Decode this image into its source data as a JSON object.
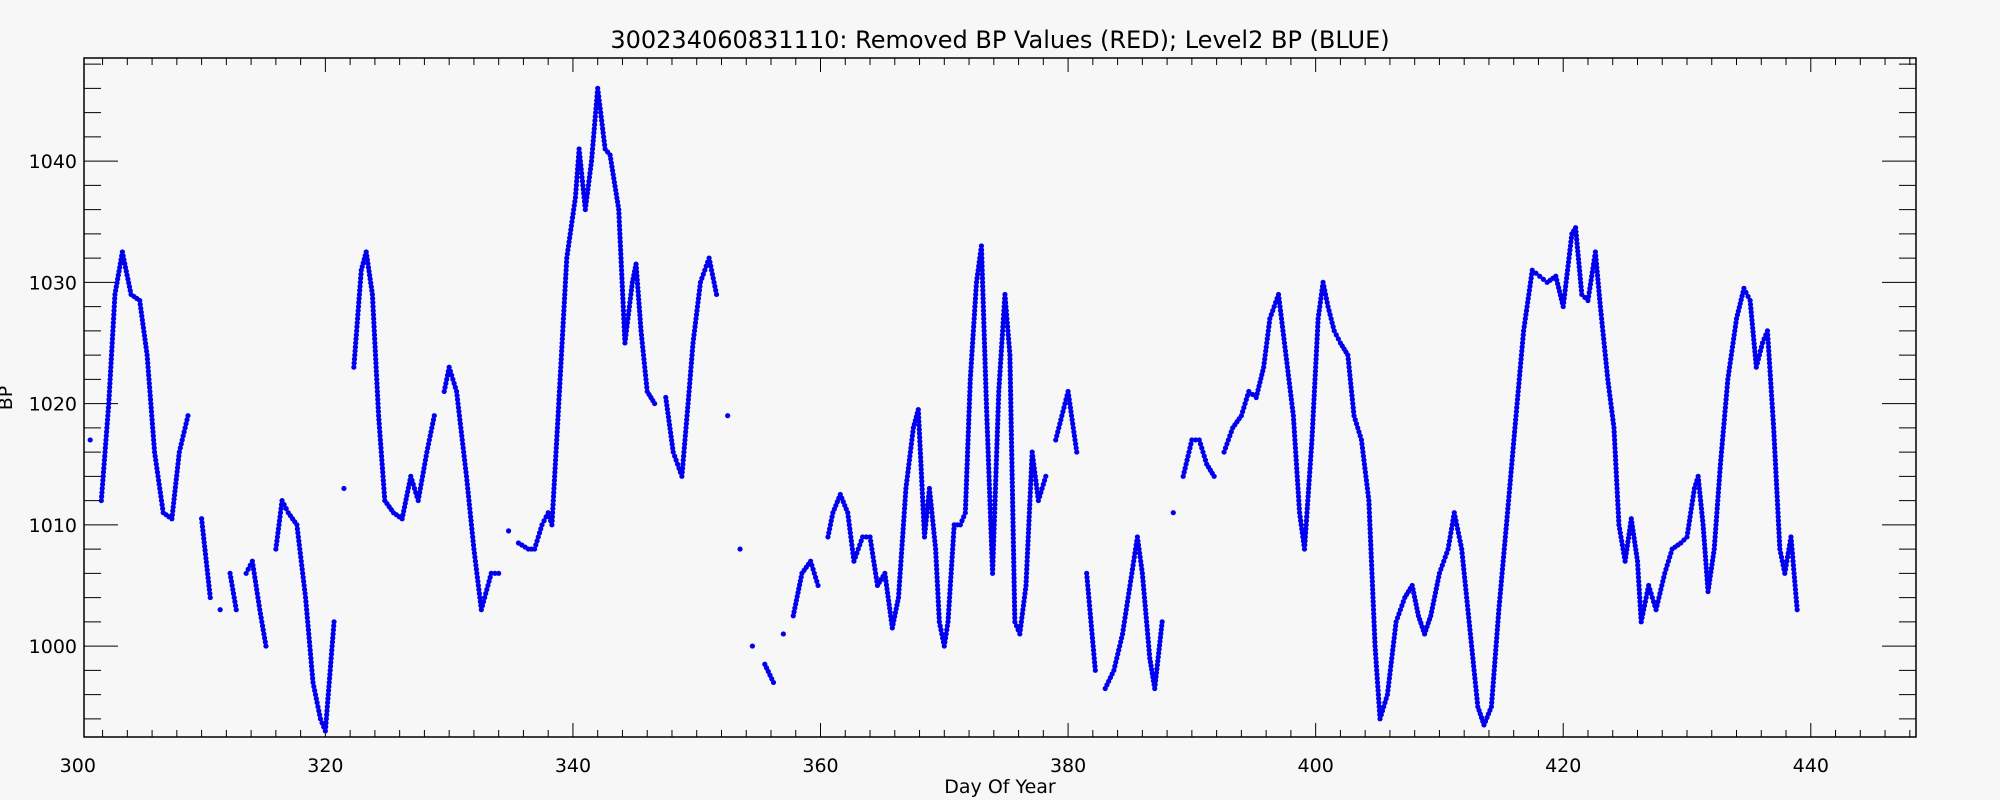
{
  "chart_data": {
    "type": "scatter",
    "title": "300234060831110: Removed BP Values (RED); Level2 BP (BLUE)",
    "xlabel": "Day Of Year",
    "ylabel": "BP",
    "xlim": [
      300.5,
      448.5
    ],
    "ylim": [
      992.5,
      1048.5
    ],
    "x_ticks": [
      300,
      320,
      340,
      360,
      380,
      400,
      420,
      440
    ],
    "y_ticks": [
      1000,
      1010,
      1020,
      1030,
      1040
    ],
    "grid": false,
    "legend": "none",
    "series": [
      {
        "color": "#0000ee",
        "anchors": [
          [
            301.0,
            1017
          ],
          [
            301.9,
            1012
          ],
          [
            302.5,
            1020
          ],
          [
            303.0,
            1029
          ],
          [
            303.6,
            1032.5
          ],
          [
            304.3,
            1029
          ],
          [
            305.0,
            1028.5
          ],
          [
            305.6,
            1024
          ],
          [
            306.2,
            1016
          ],
          [
            306.9,
            1011
          ],
          [
            307.6,
            1010.5
          ],
          [
            308.2,
            1016
          ],
          [
            308.9,
            1019
          ],
          [
            310.0,
            1010.5
          ],
          [
            310.7,
            1004
          ],
          [
            311.5,
            1003
          ],
          [
            312.3,
            1006
          ],
          [
            312.8,
            1003
          ],
          [
            313.6,
            1006
          ],
          [
            314.1,
            1007
          ],
          [
            314.7,
            1003
          ],
          [
            315.2,
            1000
          ],
          [
            316.0,
            1008
          ],
          [
            316.5,
            1012
          ],
          [
            317.0,
            1011
          ],
          [
            317.7,
            1010
          ],
          [
            318.4,
            1004
          ],
          [
            319.0,
            997
          ],
          [
            319.6,
            994
          ],
          [
            320.0,
            993
          ],
          [
            320.7,
            1002
          ],
          [
            321.5,
            1013
          ],
          [
            322.3,
            1023
          ],
          [
            322.9,
            1031
          ],
          [
            323.3,
            1032.5
          ],
          [
            323.8,
            1029
          ],
          [
            324.3,
            1019
          ],
          [
            324.8,
            1012
          ],
          [
            325.5,
            1011
          ],
          [
            326.2,
            1010.5
          ],
          [
            326.9,
            1014
          ],
          [
            327.5,
            1012
          ],
          [
            328.2,
            1016
          ],
          [
            328.8,
            1019
          ],
          [
            329.6,
            1021
          ],
          [
            330.0,
            1023
          ],
          [
            330.6,
            1021
          ],
          [
            331.4,
            1014
          ],
          [
            332.0,
            1008
          ],
          [
            332.6,
            1003
          ],
          [
            333.4,
            1006
          ],
          [
            334.0,
            1006
          ],
          [
            334.8,
            1009.5
          ],
          [
            335.6,
            1008.5
          ],
          [
            336.4,
            1008
          ],
          [
            336.9,
            1008
          ],
          [
            337.5,
            1010
          ],
          [
            338.0,
            1011
          ],
          [
            338.3,
            1010
          ],
          [
            338.8,
            1019
          ],
          [
            339.5,
            1032
          ],
          [
            340.2,
            1037
          ],
          [
            340.5,
            1041
          ],
          [
            341.0,
            1036
          ],
          [
            341.5,
            1040
          ],
          [
            342.0,
            1046
          ],
          [
            342.6,
            1041
          ],
          [
            343.0,
            1040.5
          ],
          [
            343.7,
            1036
          ],
          [
            344.2,
            1025
          ],
          [
            344.8,
            1030
          ],
          [
            345.1,
            1031.5
          ],
          [
            345.5,
            1026
          ],
          [
            346.0,
            1021
          ],
          [
            346.6,
            1020
          ],
          [
            347.5,
            1020.5
          ],
          [
            348.1,
            1016
          ],
          [
            348.8,
            1014
          ],
          [
            349.3,
            1020
          ],
          [
            349.7,
            1025
          ],
          [
            350.3,
            1030
          ],
          [
            351.0,
            1032
          ],
          [
            351.6,
            1029
          ],
          [
            352.5,
            1019
          ],
          [
            353.5,
            1008
          ],
          [
            354.5,
            1000
          ],
          [
            355.5,
            998.5
          ],
          [
            356.2,
            997
          ],
          [
            357.0,
            1001
          ],
          [
            357.8,
            1002.5
          ],
          [
            358.5,
            1006
          ],
          [
            359.2,
            1007
          ],
          [
            359.8,
            1005
          ],
          [
            360.6,
            1009
          ],
          [
            361.0,
            1011
          ],
          [
            361.6,
            1012.5
          ],
          [
            362.2,
            1011
          ],
          [
            362.7,
            1007
          ],
          [
            363.4,
            1009
          ],
          [
            364.0,
            1009
          ],
          [
            364.6,
            1005
          ],
          [
            365.2,
            1006
          ],
          [
            365.8,
            1001.5
          ],
          [
            366.3,
            1004
          ],
          [
            366.9,
            1013
          ],
          [
            367.5,
            1018
          ],
          [
            367.9,
            1019.5
          ],
          [
            368.4,
            1009
          ],
          [
            368.8,
            1013
          ],
          [
            369.3,
            1008
          ],
          [
            369.6,
            1002
          ],
          [
            370.0,
            1000
          ],
          [
            370.3,
            1002
          ],
          [
            370.8,
            1010
          ],
          [
            371.3,
            1010
          ],
          [
            371.7,
            1011
          ],
          [
            372.1,
            1022
          ],
          [
            372.6,
            1030
          ],
          [
            373.0,
            1033
          ],
          [
            373.4,
            1020
          ],
          [
            373.9,
            1006
          ],
          [
            374.4,
            1021
          ],
          [
            374.9,
            1029
          ],
          [
            375.3,
            1024
          ],
          [
            375.7,
            1002
          ],
          [
            376.1,
            1001
          ],
          [
            376.6,
            1005
          ],
          [
            377.1,
            1016
          ],
          [
            377.6,
            1012
          ],
          [
            378.2,
            1014
          ],
          [
            379.0,
            1017
          ],
          [
            379.5,
            1019
          ],
          [
            380.0,
            1021
          ],
          [
            380.7,
            1016
          ],
          [
            381.5,
            1006
          ],
          [
            382.2,
            998
          ],
          [
            383.0,
            996.5
          ],
          [
            383.7,
            998
          ],
          [
            384.4,
            1001
          ],
          [
            385.0,
            1005
          ],
          [
            385.6,
            1009
          ],
          [
            386.0,
            1006
          ],
          [
            386.6,
            999
          ],
          [
            387.0,
            996.5
          ],
          [
            387.6,
            1002
          ],
          [
            388.5,
            1011
          ],
          [
            389.3,
            1014
          ],
          [
            390.0,
            1017
          ],
          [
            390.6,
            1017
          ],
          [
            391.2,
            1015
          ],
          [
            391.8,
            1014
          ],
          [
            392.6,
            1016
          ],
          [
            393.3,
            1018
          ],
          [
            394.0,
            1019
          ],
          [
            394.6,
            1021
          ],
          [
            395.2,
            1020.5
          ],
          [
            395.8,
            1023
          ],
          [
            396.3,
            1027
          ],
          [
            397.0,
            1029
          ],
          [
            397.6,
            1024
          ],
          [
            398.2,
            1019
          ],
          [
            398.7,
            1011
          ],
          [
            399.1,
            1008
          ],
          [
            399.7,
            1017
          ],
          [
            400.2,
            1027
          ],
          [
            400.6,
            1030
          ],
          [
            401.0,
            1028
          ],
          [
            401.5,
            1026
          ],
          [
            402.0,
            1025
          ],
          [
            402.6,
            1024
          ],
          [
            403.1,
            1019
          ],
          [
            403.7,
            1017
          ],
          [
            404.3,
            1012
          ],
          [
            404.8,
            1000
          ],
          [
            405.2,
            994
          ],
          [
            405.8,
            996
          ],
          [
            406.5,
            1002
          ],
          [
            407.2,
            1004
          ],
          [
            407.8,
            1005
          ],
          [
            408.3,
            1002.5
          ],
          [
            408.8,
            1001
          ],
          [
            409.3,
            1002.5
          ],
          [
            410.0,
            1006
          ],
          [
            410.7,
            1008
          ],
          [
            411.2,
            1011
          ],
          [
            411.8,
            1008
          ],
          [
            412.5,
            1001
          ],
          [
            413.1,
            995
          ],
          [
            413.6,
            993.5
          ],
          [
            414.2,
            995
          ],
          [
            414.8,
            1003
          ],
          [
            415.5,
            1011
          ],
          [
            416.1,
            1018
          ],
          [
            416.8,
            1026
          ],
          [
            417.5,
            1031
          ],
          [
            418.1,
            1030.5
          ],
          [
            418.7,
            1030
          ],
          [
            419.4,
            1030.5
          ],
          [
            420.0,
            1028
          ],
          [
            420.7,
            1034
          ],
          [
            421.0,
            1034.5
          ],
          [
            421.5,
            1029
          ],
          [
            422.0,
            1028.5
          ],
          [
            422.6,
            1032.5
          ],
          [
            423.0,
            1028
          ],
          [
            423.6,
            1022
          ],
          [
            424.1,
            1018
          ],
          [
            424.5,
            1010
          ],
          [
            425.0,
            1007
          ],
          [
            425.5,
            1010.5
          ],
          [
            426.0,
            1007
          ],
          [
            426.3,
            1002
          ],
          [
            426.9,
            1005
          ],
          [
            427.5,
            1003
          ],
          [
            428.2,
            1006
          ],
          [
            428.8,
            1008
          ],
          [
            429.5,
            1008.5
          ],
          [
            430.0,
            1009
          ],
          [
            430.6,
            1013
          ],
          [
            430.9,
            1014
          ],
          [
            431.3,
            1010
          ],
          [
            431.7,
            1004.5
          ],
          [
            432.2,
            1008
          ],
          [
            432.7,
            1015
          ],
          [
            433.3,
            1022
          ],
          [
            434.0,
            1027
          ],
          [
            434.6,
            1029.5
          ],
          [
            435.1,
            1028.5
          ],
          [
            435.6,
            1023
          ],
          [
            436.1,
            1025
          ],
          [
            436.5,
            1026
          ],
          [
            437.0,
            1018
          ],
          [
            437.5,
            1008
          ],
          [
            437.9,
            1006
          ],
          [
            438.4,
            1009
          ],
          [
            438.9,
            1003
          ]
        ]
      }
    ]
  }
}
